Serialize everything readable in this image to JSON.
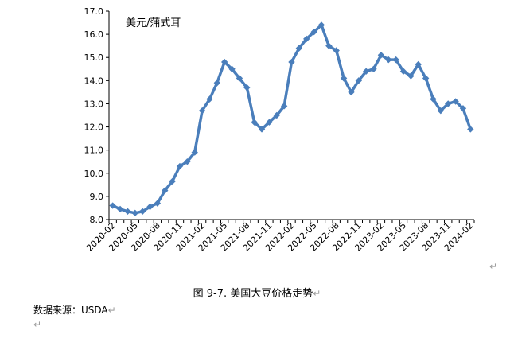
{
  "chart_data": {
    "type": "line",
    "unit_label": "美元/蒲式耳",
    "ylim": [
      8.0,
      17.0
    ],
    "yticks": [
      "8.0",
      "9.0",
      "10.0",
      "11.0",
      "12.0",
      "13.0",
      "14.0",
      "15.0",
      "16.0",
      "17.0"
    ],
    "xtick_labels": [
      "2020-02",
      "2020-05",
      "2020-08",
      "2020-11",
      "2021-02",
      "2021-05",
      "2021-08",
      "2021-11",
      "2022-02",
      "2022-05",
      "2022-08",
      "2022-11",
      "2023-02",
      "2023-05",
      "2023-08",
      "2023-11",
      "2024-02"
    ],
    "x": [
      "2020-02",
      "2020-03",
      "2020-04",
      "2020-05",
      "2020-06",
      "2020-07",
      "2020-08",
      "2020-09",
      "2020-10",
      "2020-11",
      "2020-12",
      "2021-01",
      "2021-02",
      "2021-03",
      "2021-04",
      "2021-05",
      "2021-06",
      "2021-07",
      "2021-08",
      "2021-09",
      "2021-10",
      "2021-11",
      "2021-12",
      "2022-01",
      "2022-02",
      "2022-03",
      "2022-04",
      "2022-05",
      "2022-06",
      "2022-07",
      "2022-08",
      "2022-09",
      "2022-10",
      "2022-11",
      "2022-12",
      "2023-01",
      "2023-02",
      "2023-03",
      "2023-04",
      "2023-05",
      "2023-06",
      "2023-07",
      "2023-08",
      "2023-09",
      "2023-10",
      "2023-11",
      "2023-12",
      "2024-01",
      "2024-02"
    ],
    "series": [
      {
        "values": [
          8.6,
          8.45,
          8.35,
          8.28,
          8.35,
          8.55,
          8.7,
          9.25,
          9.65,
          10.3,
          10.5,
          10.9,
          12.7,
          13.2,
          13.9,
          14.8,
          14.5,
          14.1,
          13.7,
          12.2,
          11.9,
          12.2,
          12.5,
          12.9,
          14.8,
          15.4,
          15.8,
          16.1,
          16.4,
          15.5,
          15.3,
          14.1,
          13.5,
          14.0,
          14.4,
          14.5,
          15.1,
          14.9,
          14.9,
          14.4,
          14.2,
          14.7,
          14.1,
          13.2,
          12.7,
          13.0,
          13.1,
          12.8,
          11.9
        ]
      }
    ],
    "color": "#4a7ebb",
    "grid": false,
    "legend": "none"
  },
  "caption": "图 9-7.  美国大豆价格走势",
  "source": "数据来源：USDA",
  "para_mark": "↵"
}
